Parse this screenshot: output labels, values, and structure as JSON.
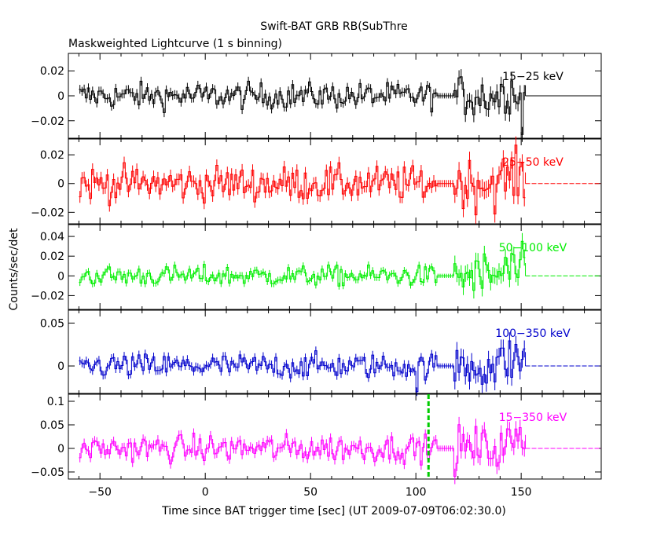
{
  "chart_data": {
    "type": "line",
    "title": "Swift-BAT GRB RB(SubThre",
    "subtitle": "Maskweighted Lightcurve (1 s binning)",
    "xlabel": "Time since BAT trigger time [sec] (UT 2009-07-09T06:02:30.0)",
    "ylabel": "Counts/sec/det",
    "xlim": [
      -65,
      188
    ],
    "x_ticks": [
      -50,
      0,
      50,
      100,
      150
    ],
    "x_tick_labels": [
      "−50",
      "0",
      "50",
      "100",
      "150"
    ],
    "data_range": [
      -60,
      152
    ],
    "trigger_line_x": 106,
    "trigger_line_color": "#00cc00",
    "grid": false,
    "panels": [
      {
        "series_name": "15−25 keV",
        "color": "#000000",
        "ylim": [
          -0.034,
          0.034
        ],
        "y_ticks": [
          -0.02,
          0,
          0.02
        ],
        "y_tick_labels": [
          "−0.02",
          "0",
          "0.02"
        ],
        "noise_early": 0.0065,
        "noise_late": 0.011,
        "dip": {
          "x": 150,
          "value": -0.031
        }
      },
      {
        "series_name": "25−50 keV",
        "color": "#ff0000",
        "ylim": [
          -0.028,
          0.031
        ],
        "y_ticks": [
          -0.02,
          0,
          0.02
        ],
        "y_tick_labels": [
          "−0.02",
          "0",
          "0.02"
        ],
        "noise_early": 0.0075,
        "noise_late": 0.011,
        "dip": null
      },
      {
        "series_name": "50−100 keV",
        "color": "#00ee00",
        "ylim": [
          -0.034,
          0.052
        ],
        "y_ticks": [
          -0.02,
          0,
          0.02,
          0.04
        ],
        "y_tick_labels": [
          "−0.02",
          "0",
          "0.02",
          "0.04"
        ],
        "noise_early": 0.0065,
        "noise_late": 0.015,
        "dip": null
      },
      {
        "series_name": "100−350 keV",
        "color": "#0000cc",
        "ylim": [
          -0.032,
          0.065
        ],
        "y_ticks": [
          0,
          0.05
        ],
        "y_tick_labels": [
          "0",
          "0.05"
        ],
        "noise_early": 0.009,
        "noise_late": 0.018,
        "dip": {
          "x": 100,
          "value": -0.03
        }
      },
      {
        "series_name": "15−350 keV",
        "color": "#ff00ff",
        "ylim": [
          -0.065,
          0.115
        ],
        "y_ticks": [
          -0.05,
          0,
          0.05,
          0.1
        ],
        "y_tick_labels": [
          "−0.05",
          "0",
          "0.05",
          "0.1"
        ],
        "noise_early": 0.018,
        "noise_late": 0.03,
        "dip": null
      }
    ]
  }
}
